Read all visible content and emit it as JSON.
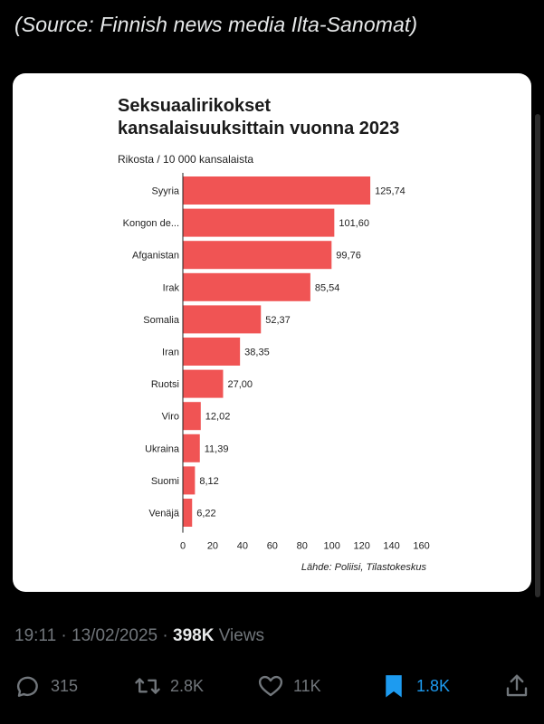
{
  "caption": "(Source: Finnish news media Ilta-Sanomat)",
  "chart_data": {
    "type": "bar",
    "orientation": "horizontal",
    "title": "Seksuaalirikokset kansalaisuuksittain vuonna 2023",
    "title_lines": [
      "Seksuaalirikokset",
      "kansalaisuuksittain vuonna 2023"
    ],
    "subtitle": "Rikosta / 10 000 kansalaista",
    "categories": [
      "Syyria",
      "Kongon de...",
      "Afganistan",
      "Irak",
      "Somalia",
      "Iran",
      "Ruotsi",
      "Viro",
      "Ukraina",
      "Suomi",
      "Venäjä"
    ],
    "values": [
      125.74,
      101.6,
      99.76,
      85.54,
      52.37,
      38.35,
      27.0,
      12.02,
      11.39,
      8.12,
      6.22
    ],
    "value_labels": [
      "125,74",
      "101,60",
      "99,76",
      "85,54",
      "52,37",
      "38,35",
      "27,00",
      "12,02",
      "11,39",
      "8,12",
      "6,22"
    ],
    "xlim": [
      0,
      160
    ],
    "xticks": [
      0,
      20,
      40,
      60,
      80,
      100,
      120,
      140,
      160
    ],
    "bar_color": "#f05454",
    "grid": false,
    "source": "Lähde: Poliisi, Tilastokeskus"
  },
  "tweet": {
    "time": "19:11",
    "separator": "·",
    "date": "13/02/2025",
    "views_count": "398K",
    "views_label": "Views"
  },
  "actions": {
    "replies": "315",
    "reposts": "2.8K",
    "likes": "11K",
    "bookmarks": "1.8K"
  },
  "colors": {
    "background": "#000000",
    "muted_text": "#71767b",
    "accent": "#1d9bf0"
  }
}
